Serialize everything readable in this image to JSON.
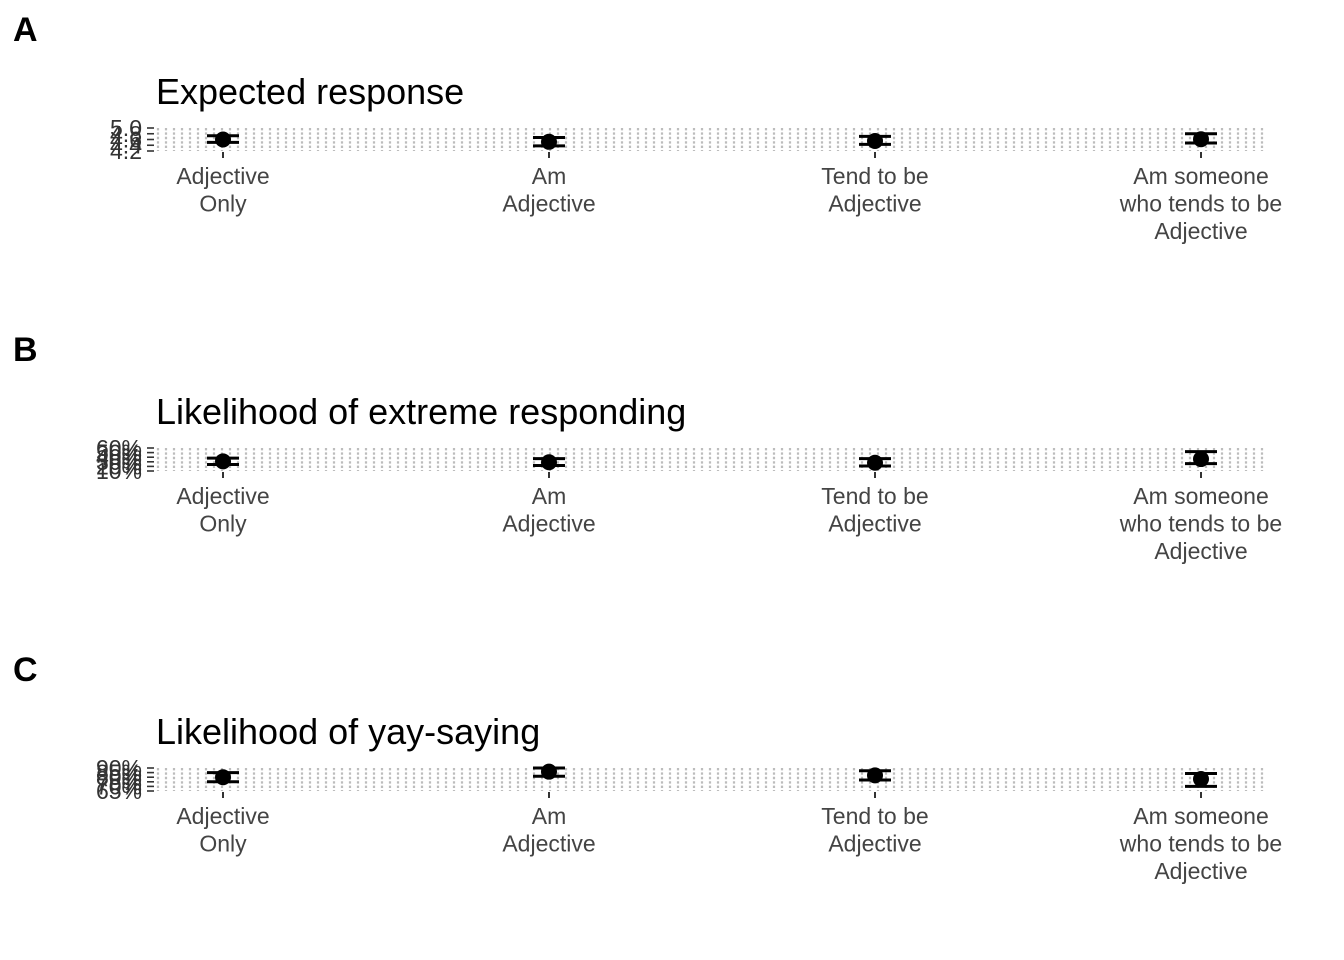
{
  "chart_data": [
    {
      "type": "errorbar",
      "panel_label": "A",
      "title": "Expected response",
      "categories": [
        "Adjective\nOnly",
        "Am\nAdjective",
        "Tend to be\nAdjective",
        "Am someone\nwho tends to be\nAdjective"
      ],
      "values": [
        4.6,
        4.52,
        4.55,
        4.61
      ],
      "lower": [
        4.5,
        4.38,
        4.43,
        4.48
      ],
      "upper": [
        4.73,
        4.67,
        4.71,
        4.8
      ],
      "ylim": [
        4.2,
        5.0
      ],
      "yticks": [
        "4.2",
        "4.4",
        "4.6",
        "4.8",
        "5.0"
      ],
      "grid": true
    },
    {
      "type": "errorbar",
      "panel_label": "B",
      "title": "Likelihood of extreme responding",
      "categories": [
        "Adjective\nOnly",
        "Am\nAdjective",
        "Tend to be\nAdjective",
        "Am someone\nwho tends to be\nAdjective"
      ],
      "values": [
        0.31,
        0.29,
        0.28,
        0.36
      ],
      "lower": [
        0.24,
        0.22,
        0.21,
        0.26
      ],
      "upper": [
        0.38,
        0.37,
        0.37,
        0.52
      ],
      "ylim": [
        0.1,
        0.6
      ],
      "yticks": [
        "10%",
        "20%",
        "30%",
        "40%",
        "50%",
        "60%"
      ],
      "grid": true
    },
    {
      "type": "errorbar",
      "panel_label": "C",
      "title": "Likelihood of yay-saying",
      "categories": [
        "Adjective\nOnly",
        "Am\nAdjective",
        "Tend to be\nAdjective",
        "Am someone\nwho tends to be\nAdjective"
      ],
      "values": [
        0.8,
        0.86,
        0.82,
        0.78
      ],
      "lower": [
        0.75,
        0.81,
        0.77,
        0.7
      ],
      "upper": [
        0.85,
        0.9,
        0.87,
        0.84
      ],
      "ylim": [
        0.65,
        0.9
      ],
      "yticks": [
        "65%",
        "70%",
        "75%",
        "80%",
        "85%",
        "90%"
      ],
      "grid": true
    }
  ]
}
